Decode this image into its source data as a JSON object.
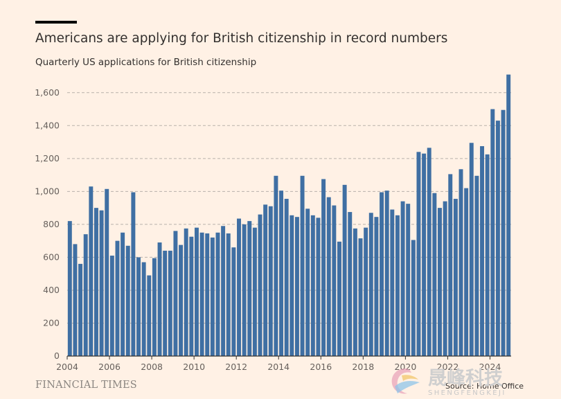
{
  "header": {
    "title": "Americans are applying for British citizenship in record numbers",
    "subtitle": "Quarterly US applications for British citizenship"
  },
  "footer": {
    "brand": "FINANCIAL TIMES",
    "source": "Source: Home Office"
  },
  "watermark": {
    "text_cn": "晟峰科技",
    "text_en": "SHENGFENGKEJI"
  },
  "colors": {
    "background": "#FFF1E5",
    "bar": "#3F6FA3",
    "gridline": "#B8B1AA",
    "text": "#33302E"
  },
  "chart_data": {
    "type": "bar",
    "x_start": 2004,
    "x_step": 0.25,
    "xticks": [
      2004,
      2006,
      2008,
      2010,
      2012,
      2014,
      2016,
      2018,
      2020,
      2022,
      2024
    ],
    "xtick_labels": [
      "2004",
      "2006",
      "2008",
      "2010",
      "2012",
      "2014",
      "2016",
      "2018",
      "2020",
      "2022",
      "2024"
    ],
    "yticks": [
      0,
      200,
      400,
      600,
      800,
      1000,
      1200,
      1400,
      1600
    ],
    "ytick_labels": [
      "0",
      "200",
      "400",
      "600",
      "800",
      "1,000",
      "1,200",
      "1,400",
      "1,600"
    ],
    "ylim": [
      0,
      1700
    ],
    "grid": true,
    "series": [
      {
        "values": [
          820,
          680,
          560,
          740,
          1030,
          900,
          885,
          1015,
          610,
          700,
          750,
          670,
          995,
          600,
          570,
          490,
          595,
          690,
          640,
          640,
          760,
          675,
          775,
          725,
          780,
          750,
          745,
          720,
          750,
          790,
          745,
          660,
          835,
          800,
          820,
          780,
          860,
          920,
          910,
          1095,
          1005,
          955,
          855,
          845,
          1095,
          895,
          855,
          840,
          1075,
          965,
          915,
          695,
          1040,
          875,
          775,
          715,
          780,
          870,
          845,
          995,
          1005,
          890,
          855,
          940,
          925,
          705,
          1240,
          1230,
          1265,
          990,
          900,
          940,
          1105,
          955,
          1135,
          1020,
          1295,
          1095,
          1275,
          1225,
          1500,
          1430,
          1495,
          1710
        ]
      }
    ]
  }
}
